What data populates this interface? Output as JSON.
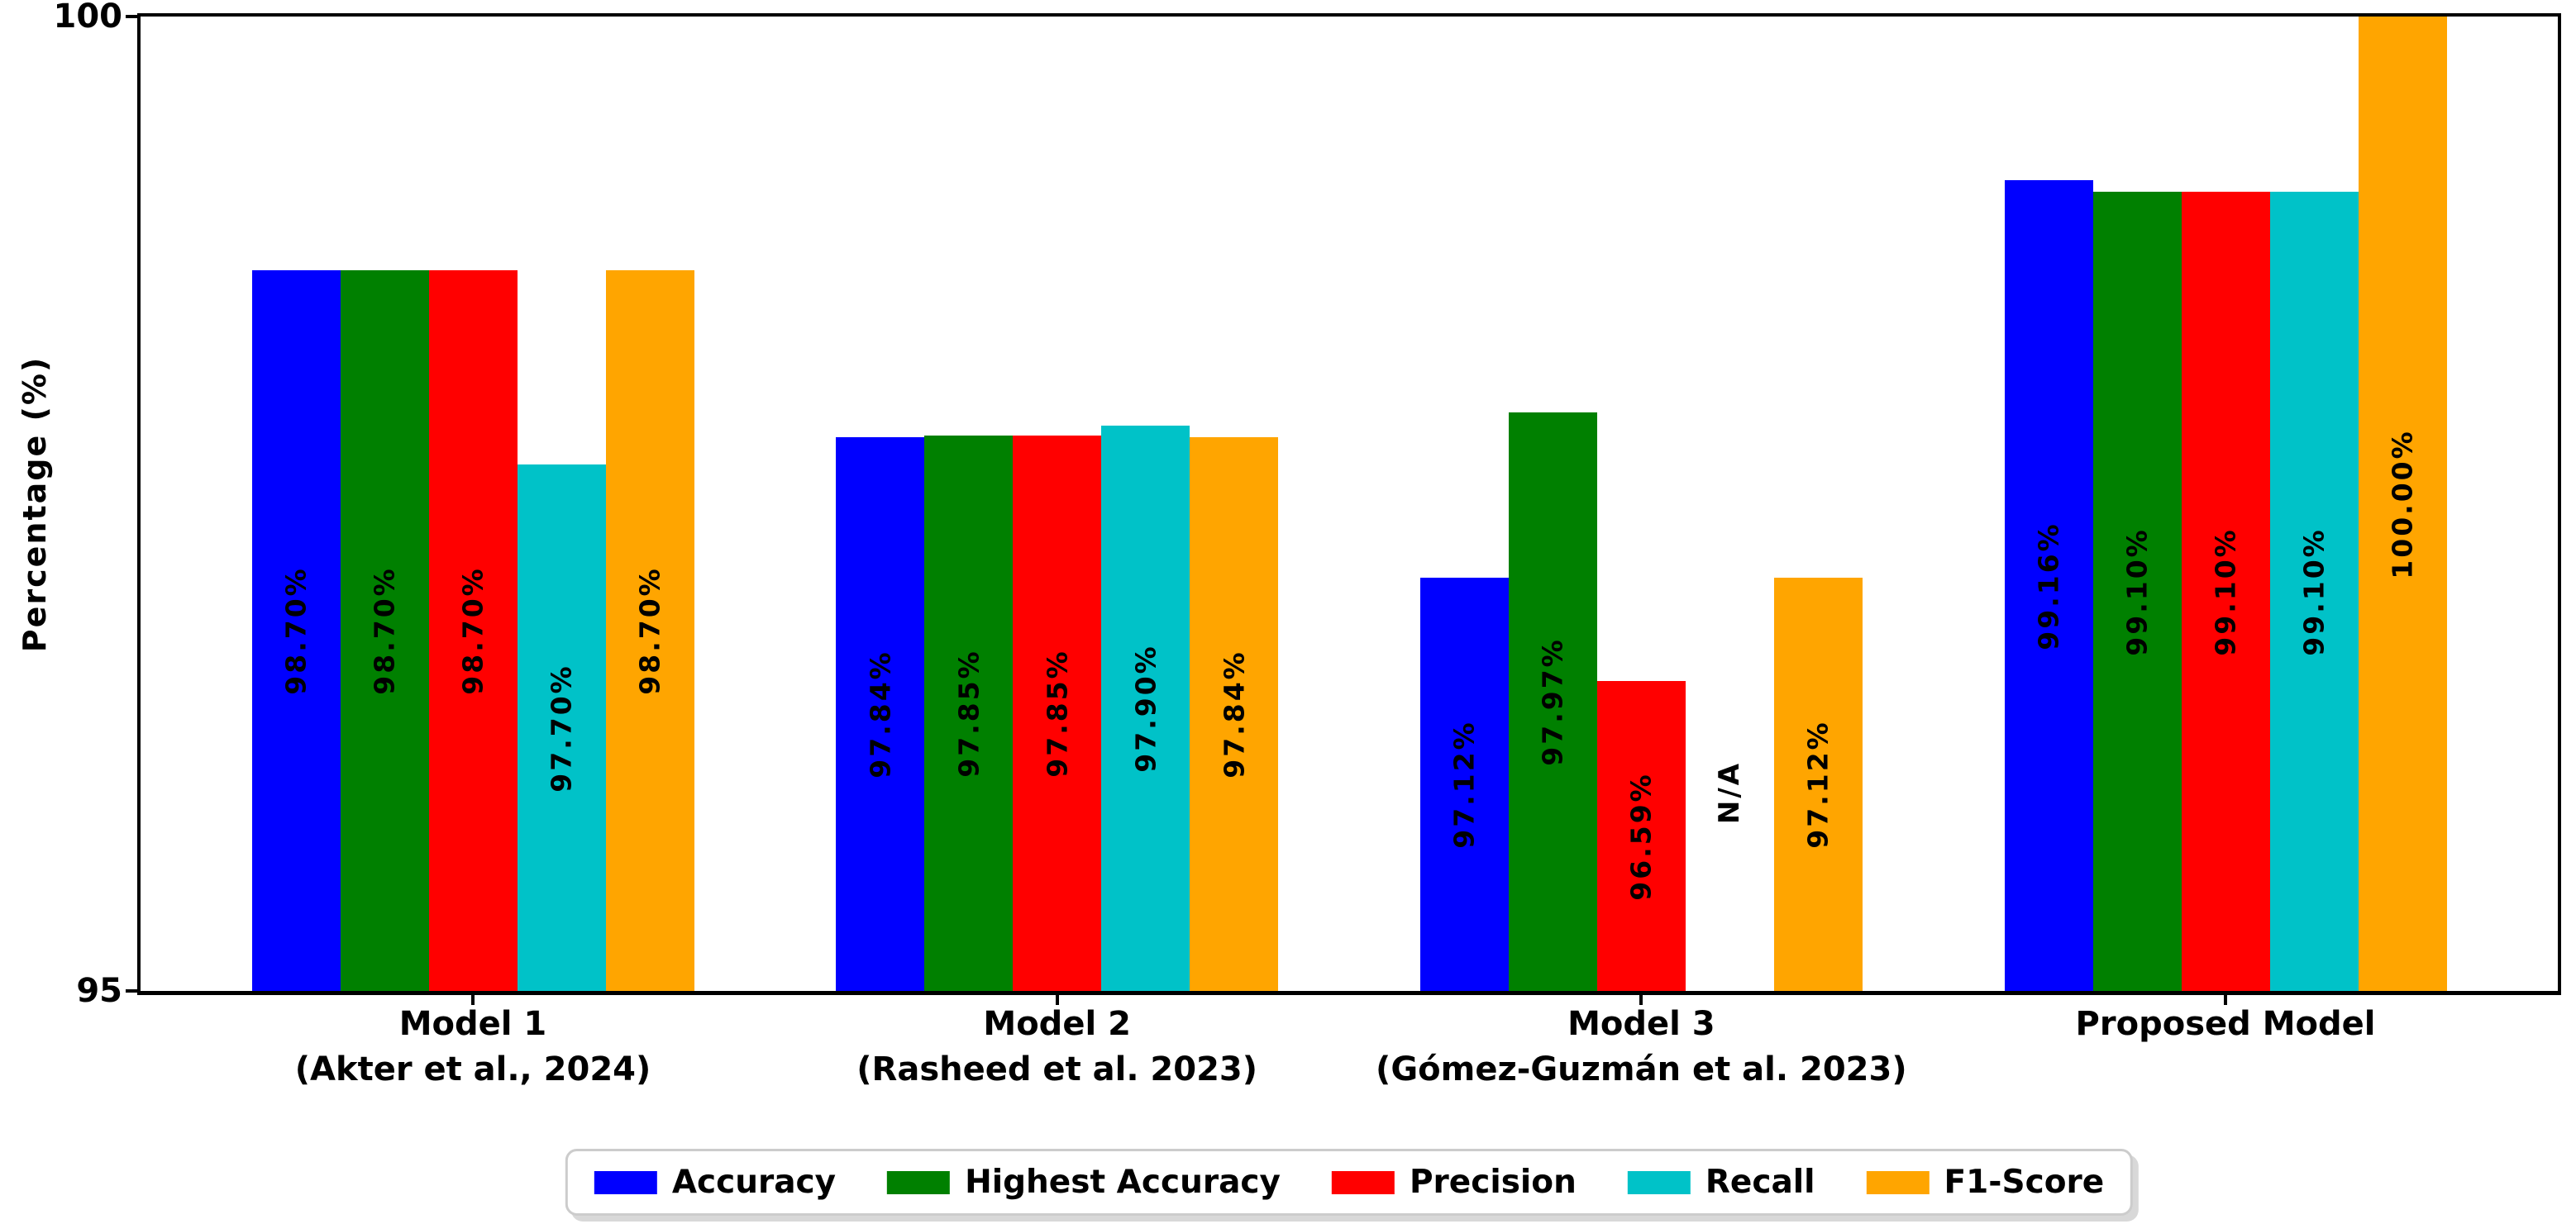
{
  "chart_data": {
    "type": "bar",
    "title": "",
    "xlabel": "",
    "ylabel": "Percentage (%)",
    "ylim": [
      95,
      100
    ],
    "yticks": [
      {
        "value": 95,
        "label": "95"
      },
      {
        "value": 100,
        "label": "100"
      }
    ],
    "grid": false,
    "legend_position": "bottom-center",
    "categories": [
      {
        "lines": [
          "Model 1",
          "(Akter et al., 2024)"
        ]
      },
      {
        "lines": [
          "Model 2",
          "(Rasheed et al. 2023)"
        ]
      },
      {
        "lines": [
          "Model 3",
          "(Gómez-Guzmán et al. 2023)"
        ]
      },
      {
        "lines": [
          "Proposed Model"
        ]
      }
    ],
    "series": [
      {
        "name": "Accuracy",
        "color": "#0000ff",
        "values": [
          98.7,
          97.84,
          97.12,
          99.16
        ],
        "bar_labels": [
          "98.70%",
          "97.84%",
          "97.12%",
          "99.16%"
        ]
      },
      {
        "name": "Highest Accuracy",
        "color": "#008000",
        "values": [
          98.7,
          97.85,
          97.97,
          99.1
        ],
        "bar_labels": [
          "98.70%",
          "97.85%",
          "97.97%",
          "99.10%"
        ]
      },
      {
        "name": "Precision",
        "color": "#ff0000",
        "values": [
          98.7,
          97.85,
          96.59,
          99.1
        ],
        "bar_labels": [
          "98.70%",
          "97.85%",
          "96.59%",
          "99.10%"
        ]
      },
      {
        "name": "Recall",
        "color": "#00c2c8",
        "values": [
          97.7,
          97.9,
          null,
          99.1
        ],
        "bar_labels": [
          "97.70%",
          "97.90%",
          "N/A",
          "99.10%"
        ]
      },
      {
        "name": "F1-Score",
        "color": "#ffa500",
        "values": [
          98.7,
          97.84,
          97.12,
          100.0
        ],
        "bar_labels": [
          "98.70%",
          "97.84%",
          "97.12%",
          "100.00%"
        ]
      }
    ]
  }
}
